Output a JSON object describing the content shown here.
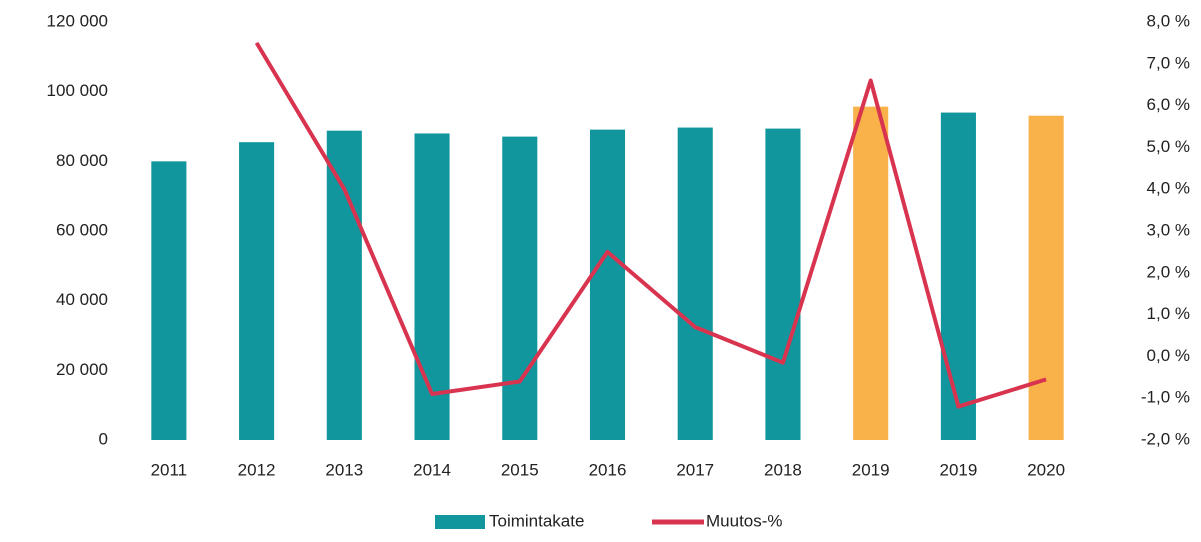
{
  "chart_data": {
    "type": "bar_line",
    "categories": [
      "2011",
      "2012",
      "2013",
      "2014",
      "2015",
      "2016",
      "2017",
      "2018",
      "2019",
      "2019",
      "2020"
    ],
    "series": [
      {
        "name": "Toimintakate",
        "type": "bar",
        "color": "#12969e",
        "colors": [
          "#12969e",
          "#12969e",
          "#12969e",
          "#12969e",
          "#12969e",
          "#12969e",
          "#12969e",
          "#12969e",
          "#f9b14a",
          "#12969e",
          "#f9b14a"
        ],
        "values": [
          80000,
          85500,
          88800,
          88000,
          87100,
          89100,
          89700,
          89400,
          95700,
          94000,
          93100
        ]
      },
      {
        "name": "Muutos-%",
        "type": "line",
        "axis": "y2",
        "color": "#d9344f",
        "values": [
          null,
          7.5,
          4.0,
          -0.9,
          -0.6,
          2.5,
          0.7,
          -0.15,
          6.6,
          -1.2,
          -0.55
        ]
      }
    ],
    "ylim": [
      0,
      120000
    ],
    "yticks": [
      {
        "value": 0,
        "label": "0"
      },
      {
        "value": 20000,
        "label": "20 000"
      },
      {
        "value": 40000,
        "label": "40 000"
      },
      {
        "value": 60000,
        "label": "60 000"
      },
      {
        "value": 80000,
        "label": "80 000"
      },
      {
        "value": 100000,
        "label": "100 000"
      },
      {
        "value": 120000,
        "label": "120 000"
      }
    ],
    "y2lim": [
      -2,
      8
    ],
    "y2ticks": [
      {
        "value": -2,
        "label": "-2,0 %"
      },
      {
        "value": -1,
        "label": "-1,0 %"
      },
      {
        "value": 0,
        "label": "0,0 %"
      },
      {
        "value": 1,
        "label": "1,0 %"
      },
      {
        "value": 2,
        "label": "2,0 %"
      },
      {
        "value": 3,
        "label": "3,0 %"
      },
      {
        "value": 4,
        "label": "4,0 %"
      },
      {
        "value": 5,
        "label": "5,0 %"
      },
      {
        "value": 6,
        "label": "6,0 %"
      },
      {
        "value": 7,
        "label": "7,0 %"
      },
      {
        "value": 8,
        "label": "8,0 %"
      }
    ],
    "grid": false,
    "legend": "bottom"
  }
}
